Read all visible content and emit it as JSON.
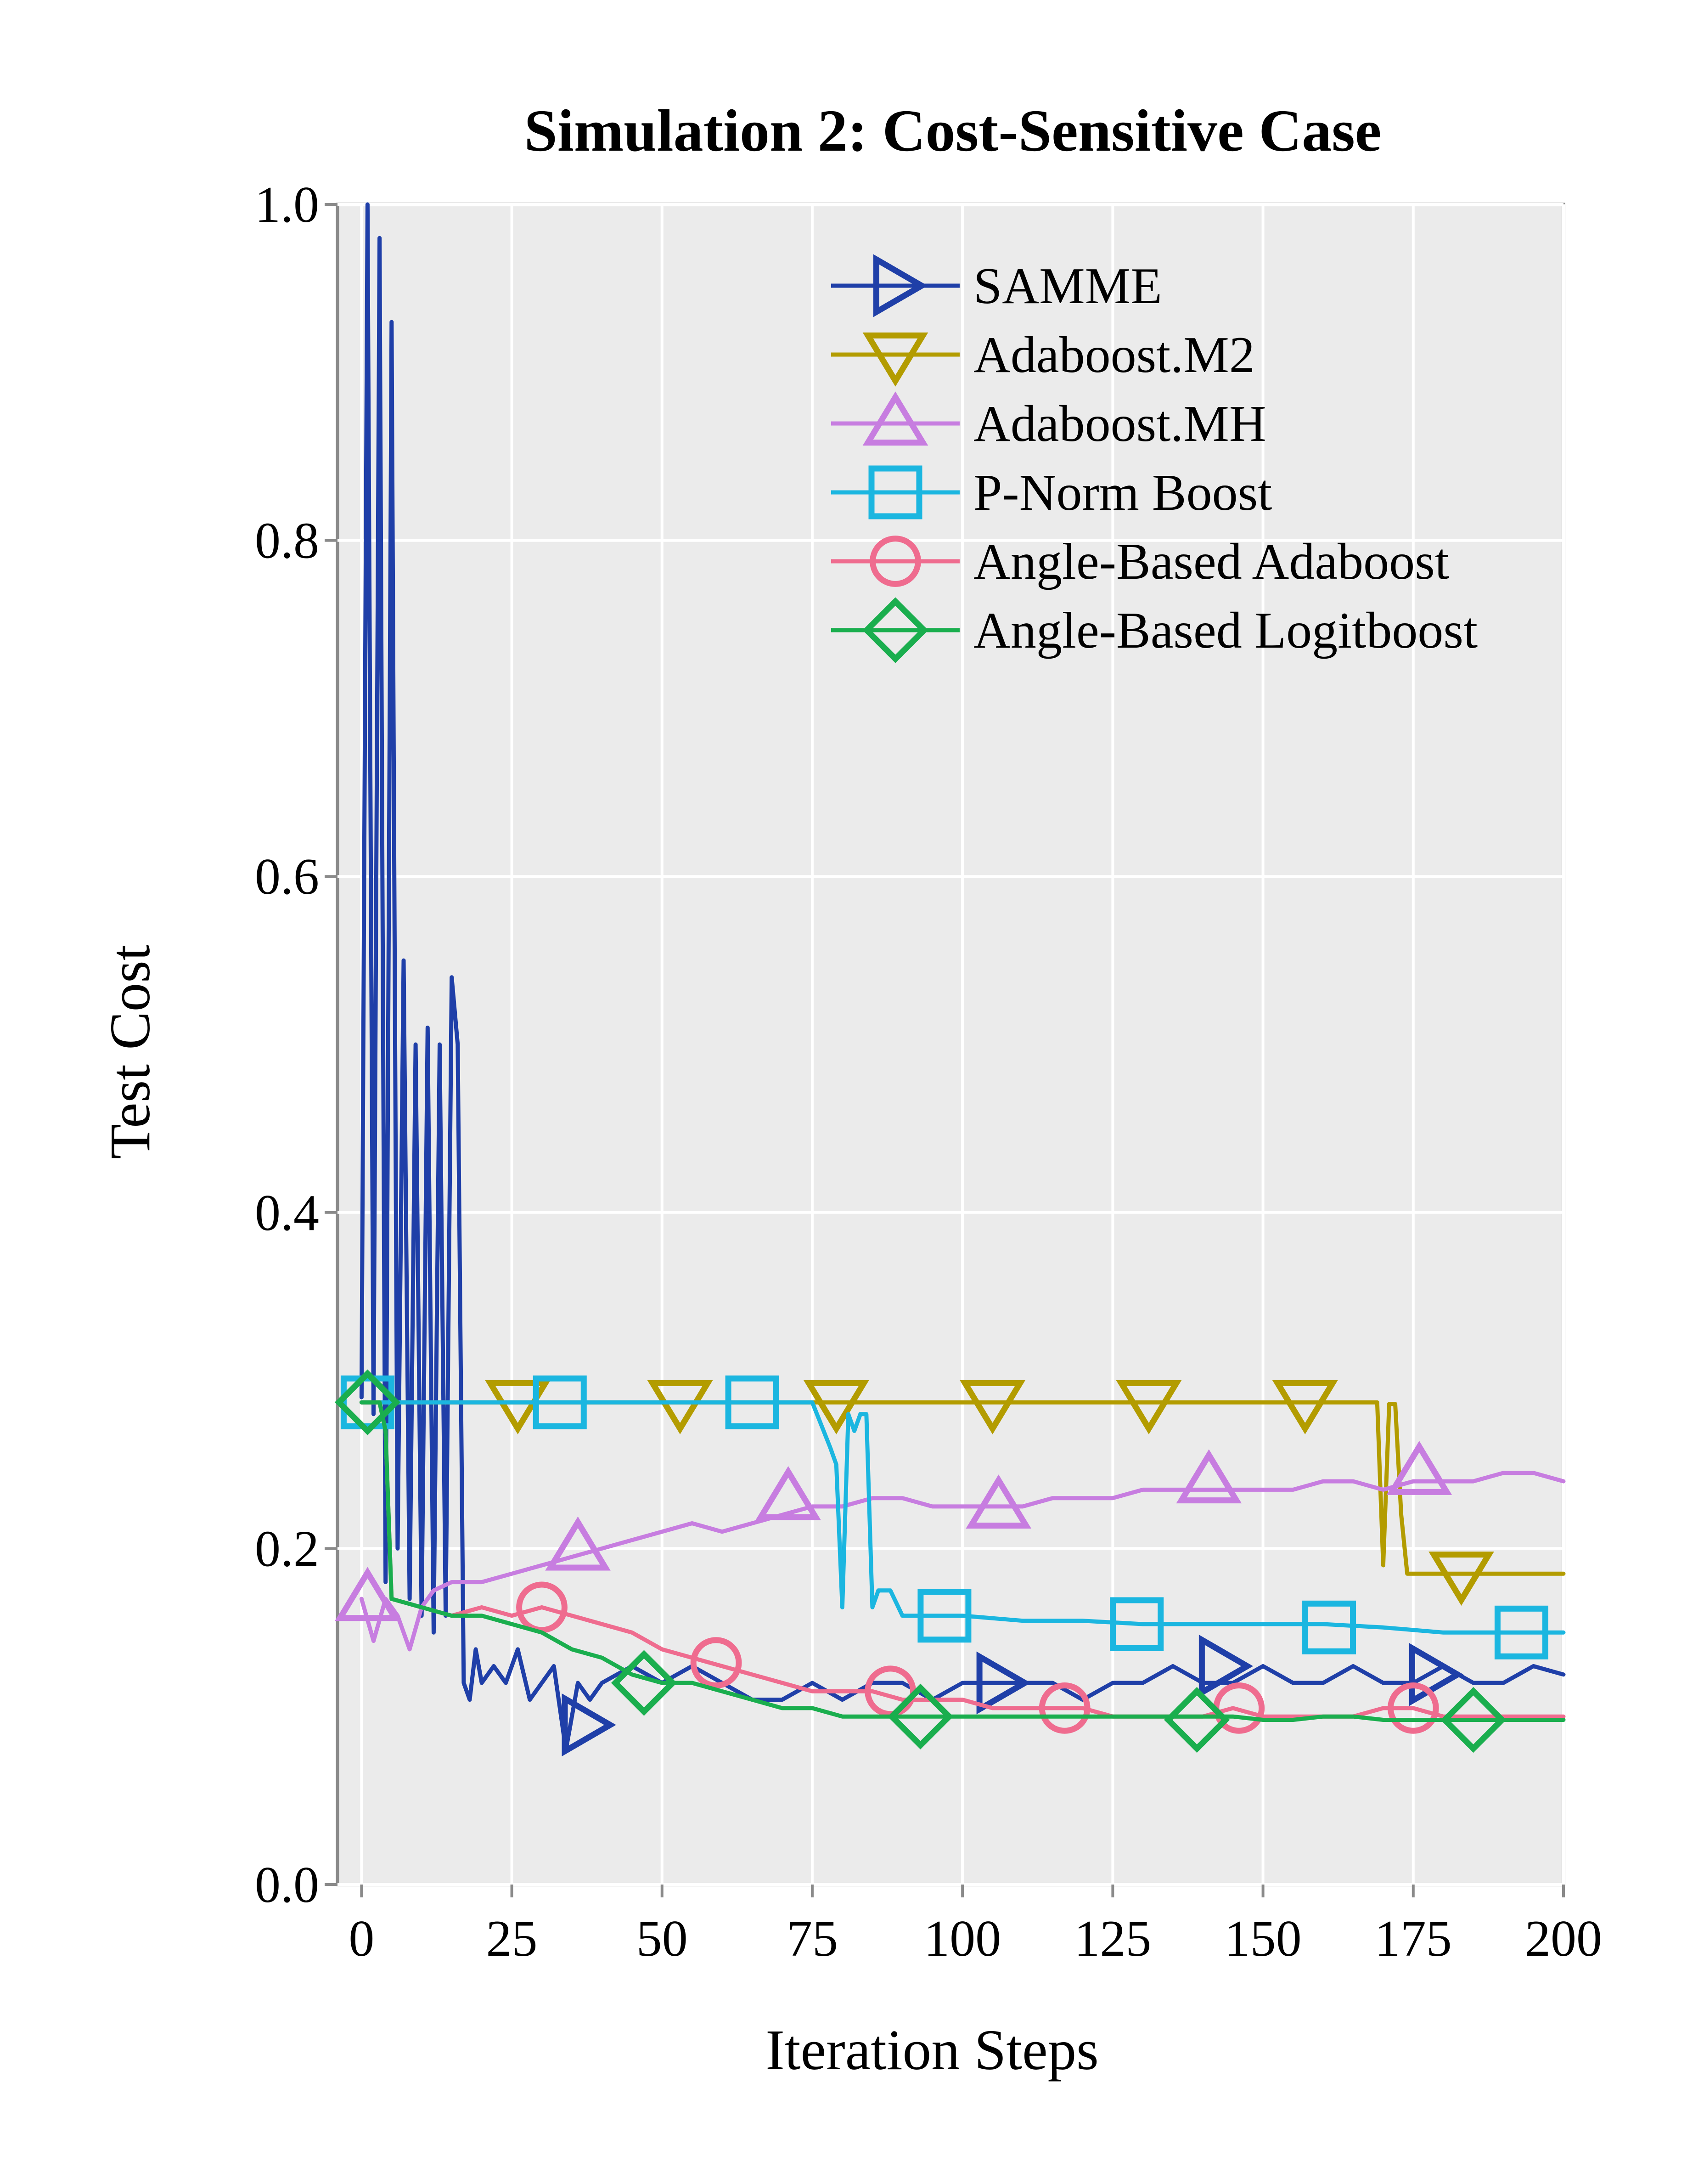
{
  "chart_data": {
    "type": "line",
    "title": "Simulation 2: Cost-Sensitive Case",
    "xlabel": "Iteration Steps",
    "ylabel": "Test Cost",
    "xlim": [
      -4,
      200
    ],
    "ylim": [
      0.0,
      1.0
    ],
    "xticks": [
      0,
      25,
      50,
      75,
      100,
      125,
      150,
      175,
      200
    ],
    "yticks": [
      0.0,
      0.2,
      0.4,
      0.6,
      0.8,
      1.0
    ],
    "xtick_labels": [
      "0",
      "25",
      "50",
      "75",
      "100",
      "125",
      "150",
      "175",
      "200"
    ],
    "ytick_labels": [
      "0.0",
      "0.2",
      "0.4",
      "0.6",
      "0.8",
      "1.0"
    ],
    "grid": true,
    "legend_position": "top-right",
    "series": [
      {
        "name": "SAMME",
        "color": "#1f3fa8",
        "marker": "triangle-right",
        "x": [
          0,
          1,
          2,
          3,
          4,
          5,
          6,
          7,
          8,
          9,
          10,
          11,
          12,
          13,
          14,
          15,
          16,
          17,
          18,
          19,
          20,
          22,
          24,
          26,
          28,
          30,
          32,
          34,
          36,
          38,
          40,
          45,
          50,
          55,
          60,
          65,
          70,
          75,
          80,
          85,
          90,
          95,
          100,
          105,
          110,
          115,
          120,
          125,
          130,
          135,
          140,
          145,
          150,
          155,
          160,
          165,
          170,
          175,
          180,
          185,
          190,
          195,
          200
        ],
        "values": [
          0.29,
          1.0,
          0.28,
          0.98,
          0.18,
          0.93,
          0.2,
          0.55,
          0.17,
          0.5,
          0.16,
          0.51,
          0.15,
          0.5,
          0.16,
          0.54,
          0.5,
          0.12,
          0.11,
          0.14,
          0.12,
          0.13,
          0.12,
          0.14,
          0.11,
          0.12,
          0.13,
          0.08,
          0.12,
          0.11,
          0.12,
          0.13,
          0.12,
          0.13,
          0.12,
          0.11,
          0.11,
          0.12,
          0.11,
          0.12,
          0.12,
          0.11,
          0.12,
          0.12,
          0.12,
          0.12,
          0.11,
          0.12,
          0.12,
          0.13,
          0.12,
          0.12,
          0.13,
          0.12,
          0.12,
          0.13,
          0.12,
          0.12,
          0.13,
          0.12,
          0.12,
          0.13,
          0.125
        ],
        "markers_x": [
          37,
          106,
          143,
          178
        ],
        "markers_y": [
          0.095,
          0.12,
          0.13,
          0.125
        ]
      },
      {
        "name": "Adaboost.M2",
        "color": "#b39c00",
        "marker": "triangle-down",
        "x": [
          0,
          5,
          10,
          15,
          20,
          25,
          30,
          35,
          40,
          45,
          50,
          60,
          70,
          80,
          90,
          100,
          110,
          120,
          130,
          140,
          150,
          160,
          165,
          168,
          169,
          170,
          171,
          172,
          173,
          174,
          175,
          180,
          185,
          190,
          195,
          200
        ],
        "values": [
          0.287,
          0.287,
          0.287,
          0.287,
          0.287,
          0.287,
          0.287,
          0.287,
          0.287,
          0.287,
          0.287,
          0.287,
          0.287,
          0.287,
          0.287,
          0.287,
          0.287,
          0.287,
          0.287,
          0.287,
          0.287,
          0.287,
          0.287,
          0.287,
          0.287,
          0.19,
          0.286,
          0.286,
          0.22,
          0.185,
          0.185,
          0.185,
          0.185,
          0.185,
          0.185,
          0.185
        ],
        "markers_x": [
          26,
          53,
          79,
          105,
          131,
          157,
          183
        ],
        "markers_y": [
          0.287,
          0.287,
          0.287,
          0.287,
          0.287,
          0.287,
          0.185
        ]
      },
      {
        "name": "Adaboost.MH",
        "color": "#c77de0",
        "marker": "triangle-up",
        "x": [
          0,
          2,
          4,
          6,
          8,
          10,
          12,
          15,
          20,
          25,
          30,
          35,
          40,
          45,
          50,
          55,
          60,
          65,
          70,
          75,
          80,
          85,
          90,
          95,
          100,
          105,
          110,
          115,
          120,
          125,
          130,
          135,
          140,
          145,
          150,
          155,
          160,
          165,
          170,
          175,
          180,
          185,
          190,
          195,
          200
        ],
        "values": [
          0.17,
          0.145,
          0.17,
          0.16,
          0.14,
          0.165,
          0.175,
          0.18,
          0.18,
          0.185,
          0.19,
          0.195,
          0.2,
          0.205,
          0.21,
          0.215,
          0.21,
          0.215,
          0.22,
          0.225,
          0.225,
          0.23,
          0.23,
          0.225,
          0.225,
          0.225,
          0.225,
          0.23,
          0.23,
          0.23,
          0.235,
          0.235,
          0.235,
          0.235,
          0.235,
          0.235,
          0.24,
          0.24,
          0.235,
          0.24,
          0.24,
          0.24,
          0.245,
          0.245,
          0.24
        ],
        "markers_x": [
          1,
          36,
          71,
          106,
          141,
          176
        ],
        "markers_y": [
          0.17,
          0.2,
          0.23,
          0.225,
          0.24,
          0.245
        ]
      },
      {
        "name": "P-Norm Boost",
        "color": "#1bb6e0",
        "marker": "square",
        "x": [
          0,
          10,
          20,
          30,
          40,
          50,
          60,
          70,
          75,
          78,
          79,
          80,
          81,
          82,
          83,
          84,
          85,
          86,
          88,
          90,
          95,
          100,
          110,
          120,
          130,
          140,
          150,
          160,
          170,
          180,
          190,
          200
        ],
        "values": [
          0.287,
          0.287,
          0.287,
          0.287,
          0.287,
          0.287,
          0.287,
          0.287,
          0.287,
          0.26,
          0.25,
          0.165,
          0.28,
          0.27,
          0.28,
          0.28,
          0.165,
          0.175,
          0.175,
          0.16,
          0.16,
          0.16,
          0.157,
          0.157,
          0.155,
          0.155,
          0.155,
          0.155,
          0.153,
          0.15,
          0.15,
          0.15
        ],
        "markers_x": [
          1,
          33,
          65,
          97,
          129,
          161,
          193
        ],
        "markers_y": [
          0.287,
          0.287,
          0.287,
          0.16,
          0.155,
          0.153,
          0.15
        ]
      },
      {
        "name": "Angle-Based Adaboost",
        "color": "#ef6c8f",
        "marker": "circle",
        "x": [
          0,
          3,
          4,
          5,
          10,
          15,
          20,
          25,
          30,
          35,
          40,
          45,
          50,
          55,
          60,
          65,
          70,
          75,
          80,
          85,
          90,
          95,
          100,
          105,
          110,
          115,
          120,
          125,
          130,
          135,
          140,
          145,
          150,
          155,
          160,
          165,
          170,
          175,
          180,
          185,
          190,
          195,
          200
        ],
        "values": [
          0.287,
          0.287,
          0.27,
          0.17,
          0.165,
          0.16,
          0.165,
          0.16,
          0.165,
          0.16,
          0.155,
          0.15,
          0.14,
          0.135,
          0.13,
          0.125,
          0.12,
          0.115,
          0.115,
          0.115,
          0.11,
          0.11,
          0.11,
          0.105,
          0.105,
          0.105,
          0.105,
          0.1,
          0.1,
          0.1,
          0.1,
          0.105,
          0.1,
          0.1,
          0.1,
          0.1,
          0.105,
          0.105,
          0.1,
          0.1,
          0.1,
          0.1,
          0.1
        ],
        "markers_x": [
          30,
          59,
          88,
          117,
          146,
          175
        ],
        "markers_y": [
          0.165,
          0.132,
          0.115,
          0.105,
          0.105,
          0.105
        ]
      },
      {
        "name": "Angle-Based Logitboost",
        "color": "#1aae4e",
        "marker": "diamond",
        "x": [
          0,
          3,
          4,
          5,
          10,
          15,
          20,
          25,
          30,
          35,
          40,
          45,
          50,
          55,
          60,
          65,
          70,
          75,
          80,
          85,
          90,
          95,
          100,
          105,
          110,
          115,
          120,
          125,
          130,
          135,
          140,
          145,
          150,
          155,
          160,
          165,
          170,
          175,
          180,
          185,
          190,
          195,
          200
        ],
        "values": [
          0.287,
          0.287,
          0.27,
          0.17,
          0.165,
          0.16,
          0.16,
          0.155,
          0.15,
          0.14,
          0.135,
          0.125,
          0.12,
          0.12,
          0.115,
          0.11,
          0.105,
          0.105,
          0.1,
          0.1,
          0.1,
          0.1,
          0.1,
          0.1,
          0.1,
          0.1,
          0.1,
          0.1,
          0.1,
          0.1,
          0.1,
          0.1,
          0.098,
          0.098,
          0.1,
          0.1,
          0.098,
          0.098,
          0.098,
          0.098,
          0.098,
          0.098,
          0.098
        ],
        "markers_x": [
          1,
          47,
          93,
          139,
          185
        ],
        "markers_y": [
          0.287,
          0.12,
          0.1,
          0.098,
          0.098
        ]
      }
    ]
  }
}
